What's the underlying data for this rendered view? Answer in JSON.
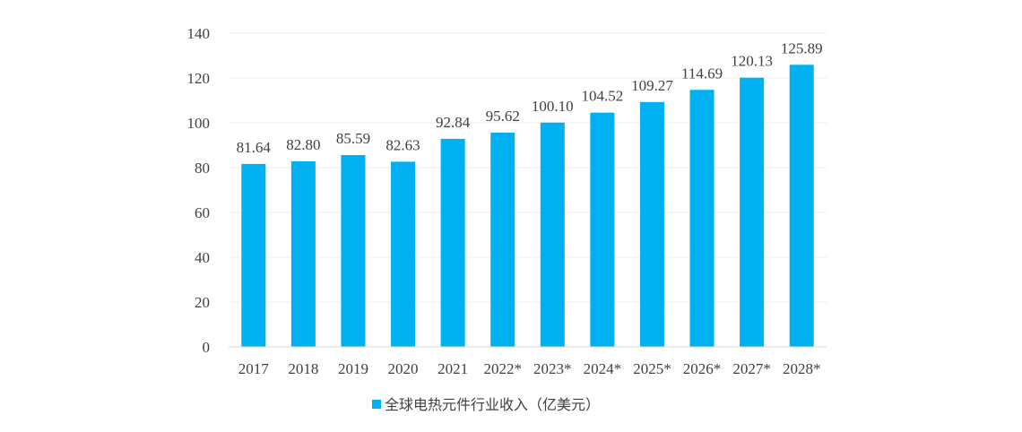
{
  "chart_data": {
    "type": "bar",
    "title": "",
    "xlabel": "",
    "ylabel": "",
    "categories": [
      "2017",
      "2018",
      "2019",
      "2020",
      "2021",
      "2022*",
      "2023*",
      "2024*",
      "2025*",
      "2026*",
      "2027*",
      "2028*"
    ],
    "series": [
      {
        "name": "全球电热元件行业收入（亿美元）",
        "values": [
          81.64,
          82.8,
          85.59,
          82.63,
          92.84,
          95.62,
          100.1,
          104.52,
          109.27,
          114.69,
          120.13,
          125.89
        ],
        "labels": [
          "81.64",
          "82.80",
          "85.59",
          "82.63",
          "92.84",
          "95.62",
          "100.10",
          "104.52",
          "109.27",
          "114.69",
          "120.13",
          "125.89"
        ],
        "color": "#00B0F0"
      }
    ],
    "ylim": [
      0,
      140
    ],
    "yticks": [
      "0",
      "20",
      "40",
      "60",
      "80",
      "100",
      "120",
      "140"
    ],
    "ytick_values": [
      0,
      20,
      40,
      60,
      80,
      100,
      120,
      140
    ],
    "grid": true,
    "legend_position": "bottom"
  }
}
